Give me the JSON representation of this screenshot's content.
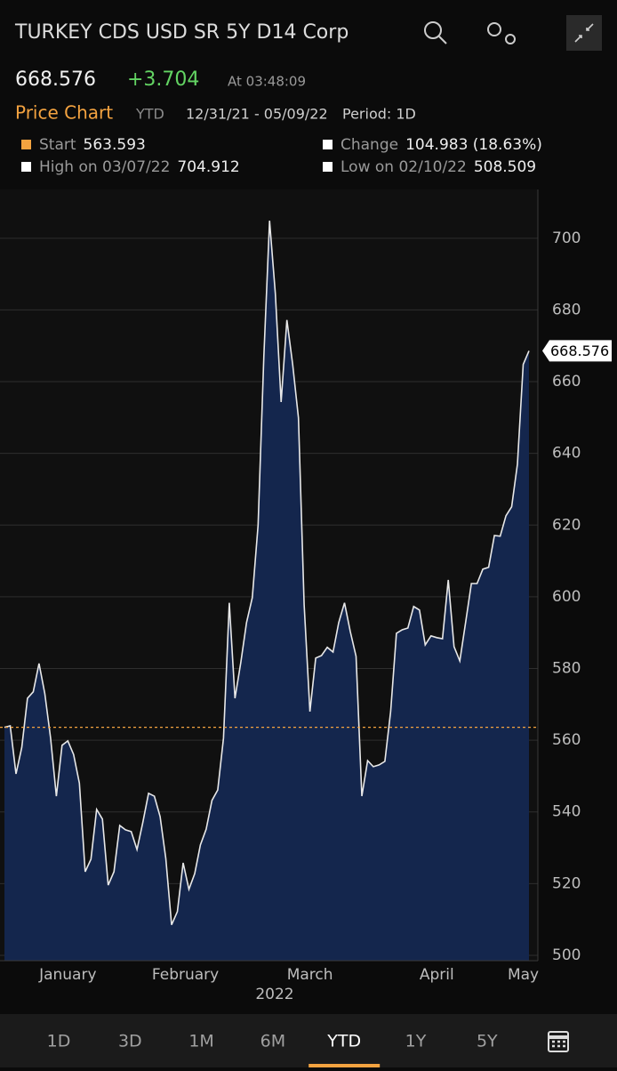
{
  "header": {
    "title": "TURKEY CDS USD SR 5Y D14 Corp"
  },
  "quote": {
    "price": "668.576",
    "change": "+3.704",
    "time": "At 03:48:09"
  },
  "chart_header": {
    "name": "Price Chart",
    "range": "YTD",
    "dates": "12/31/21 - 05/09/22",
    "period": "Period: 1D"
  },
  "stats": [
    {
      "label": "Start",
      "value": 563.593,
      "color": "#f4a340"
    },
    {
      "label": "Change",
      "value": "104.983 (18.63%)",
      "color": "#ffffff"
    },
    {
      "label": "High on 03/07/22",
      "value": 704.912,
      "color": "#ffffff"
    },
    {
      "label": "Low on 02/10/22",
      "value": 508.509,
      "color": "#ffffff"
    }
  ],
  "chart_data": {
    "type": "area",
    "values": [
      563.6,
      564,
      550.6,
      558,
      571.7,
      573.5,
      581.4,
      573,
      560.6,
      544.4,
      558.6,
      559.8,
      556,
      548,
      523.3,
      526.8,
      540.7,
      538,
      519.6,
      523.3,
      536.2,
      535,
      534.5,
      529.5,
      537,
      545.2,
      544.4,
      538.7,
      527,
      508.5,
      512.2,
      525.8,
      518.4,
      522.8,
      530.8,
      535.2,
      543.2,
      546.1,
      560.6,
      598.3,
      571.7,
      581.6,
      592.8,
      599.8,
      620,
      667.2,
      704.9,
      684.6,
      654.3,
      677.2,
      664.8,
      649.9,
      597.8,
      568,
      582.9,
      583.6,
      585.9,
      584.6,
      592.8,
      598.3,
      590.3,
      583.4,
      544.4,
      554.3,
      552.6,
      553.1,
      554.1,
      568,
      589.8,
      590.8,
      591.3,
      597.3,
      596.3,
      586.6,
      589.1,
      588.6,
      588.3,
      604.7,
      586.1,
      582.1,
      592.8,
      603.7,
      603.7,
      607.7,
      608.2,
      617.1,
      616.9,
      622.6,
      625.1,
      637,
      664.8,
      668.6
    ],
    "line_color": "#e8e8e8",
    "fill_color": "#14264d",
    "reference_color": "#f4a340",
    "xlim": [
      0,
      91
    ],
    "xticks": [
      {
        "value": 11,
        "label": "January"
      },
      {
        "value": 31.4,
        "label": "February"
      },
      {
        "value": 53,
        "label": "March"
      },
      {
        "value": 75,
        "label": "April"
      },
      {
        "value": 90,
        "label": "May"
      }
    ],
    "x_sublabel": "2022",
    "ylim": [
      498.5,
      713.6
    ],
    "yticks": [
      500,
      520,
      540,
      560,
      580,
      600,
      620,
      640,
      660,
      680,
      700
    ],
    "grid": true
  },
  "tabs": [
    "1D",
    "3D",
    "1M",
    "6M",
    "YTD",
    "1Y",
    "5Y"
  ],
  "active_tab": 4
}
